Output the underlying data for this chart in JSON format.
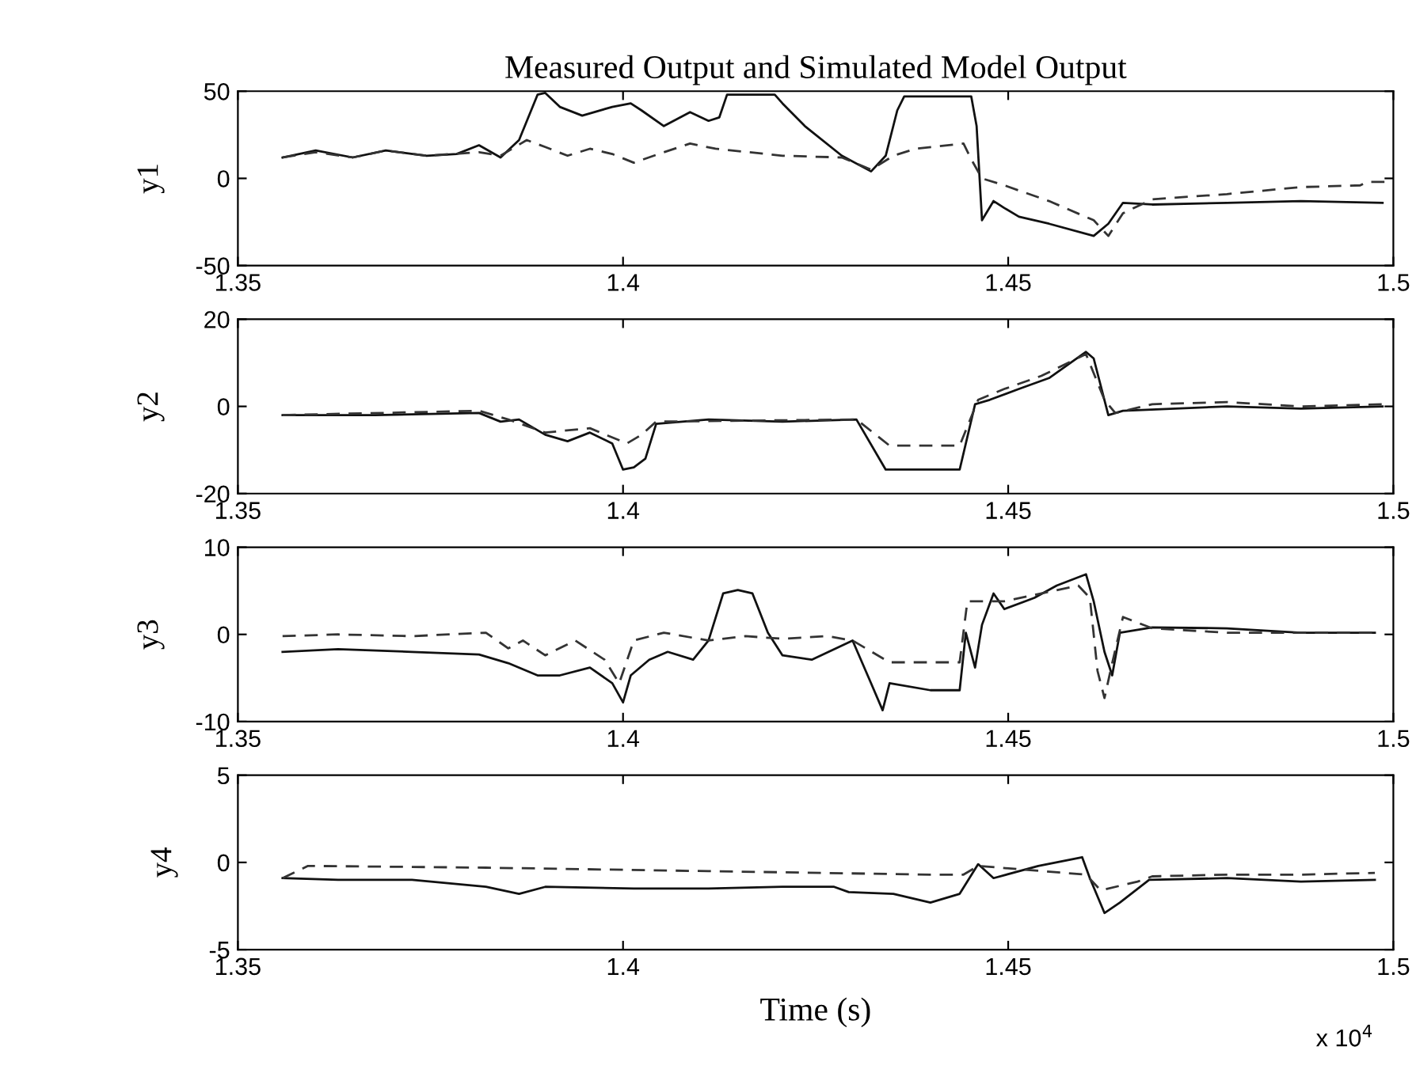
{
  "chart_data": [
    {
      "type": "line",
      "title": "Measured Output and Simulated Model Output",
      "ylabel": "y1",
      "xlim": [
        1.35,
        1.5
      ],
      "ylim": [
        -50,
        50
      ],
      "yticks": [
        -50,
        0,
        50
      ],
      "xticks": [
        1.35,
        1.4,
        1.45,
        1.5
      ],
      "grid": false,
      "series": [
        {
          "color": "#111111",
          "line_style": "solid",
          "x": [
            1.3558,
            1.3601,
            1.3649,
            1.3692,
            1.3745,
            1.3784,
            1.3813,
            1.3841,
            1.3865,
            1.3889,
            1.3899,
            1.3918,
            1.3947,
            1.3986,
            1.401,
            1.4024,
            1.4053,
            1.4087,
            1.4111,
            1.4125,
            1.4135,
            1.4197,
            1.4207,
            1.4236,
            1.4284,
            1.4322,
            1.4341,
            1.4356,
            1.4365,
            1.4452,
            1.4459,
            1.4466,
            1.4481,
            1.4495,
            1.4514,
            1.4553,
            1.4611,
            1.463,
            1.4649,
            1.4687,
            1.4784,
            1.488,
            1.4986
          ],
          "values": [
            12,
            16,
            12,
            16,
            13,
            14,
            19,
            12,
            22,
            48,
            49,
            41,
            36,
            41,
            43,
            39,
            30,
            38,
            33,
            35,
            48,
            48,
            43,
            30,
            13,
            4,
            13,
            39,
            47,
            47,
            30,
            -24,
            -13,
            -17,
            -22,
            -26,
            -33,
            -26,
            -14,
            -15,
            -14,
            -13,
            -14
          ]
        },
        {
          "color": "#333333",
          "line_style": "dashed",
          "x": [
            1.3558,
            1.3601,
            1.3649,
            1.3692,
            1.3745,
            1.3813,
            1.3841,
            1.3875,
            1.3899,
            1.3928,
            1.3957,
            1.3986,
            1.4014,
            1.4053,
            1.4087,
            1.412,
            1.4207,
            1.4284,
            1.4322,
            1.4351,
            1.438,
            1.4442,
            1.4452,
            1.4466,
            1.4495,
            1.4553,
            1.4611,
            1.463,
            1.4649,
            1.4687,
            1.4784,
            1.488,
            1.4957,
            1.4966,
            1.4995
          ],
          "values": [
            12,
            15,
            12,
            16,
            13,
            15,
            13,
            22,
            18,
            13,
            17,
            14,
            9,
            15,
            20,
            17,
            13,
            12,
            5,
            13,
            17,
            20,
            11,
            0,
            -4,
            -13,
            -24,
            -33,
            -20,
            -12,
            -9,
            -5,
            -4,
            -2,
            -2
          ]
        }
      ]
    },
    {
      "type": "line",
      "ylabel": "y2",
      "xlim": [
        1.35,
        1.5
      ],
      "ylim": [
        -20,
        20
      ],
      "yticks": [
        -20,
        0,
        20
      ],
      "xticks": [
        1.35,
        1.4,
        1.45,
        1.5
      ],
      "grid": false,
      "series": [
        {
          "color": "#111111",
          "line_style": "solid",
          "x": [
            1.3558,
            1.3678,
            1.3813,
            1.3841,
            1.3865,
            1.3899,
            1.3928,
            1.3957,
            1.3986,
            1.4,
            1.4014,
            1.4029,
            1.4043,
            1.4111,
            1.4207,
            1.4303,
            1.4341,
            1.4437,
            1.4457,
            1.4476,
            1.4514,
            1.4553,
            1.4601,
            1.4611,
            1.463,
            1.4649,
            1.4784,
            1.488,
            1.4986
          ],
          "values": [
            -2,
            -2,
            -1.5,
            -3.5,
            -3,
            -6.5,
            -8,
            -6,
            -8.5,
            -14.5,
            -14,
            -12,
            -4,
            -3,
            -3.5,
            -3,
            -14.5,
            -14.5,
            0.5,
            1.5,
            4,
            6.5,
            12.5,
            11,
            -2,
            -1,
            0,
            -0.5,
            0
          ]
        },
        {
          "color": "#333333",
          "line_style": "dashed",
          "x": [
            1.3558,
            1.3813,
            1.3851,
            1.3899,
            1.3957,
            1.4005,
            1.4024,
            1.4043,
            1.4303,
            1.4346,
            1.4437,
            1.4461,
            1.4495,
            1.4543,
            1.4601,
            1.4625,
            1.4639,
            1.4687,
            1.4784,
            1.488,
            1.4986
          ],
          "values": [
            -2,
            -1,
            -3,
            -6,
            -5,
            -8.5,
            -6.5,
            -3.5,
            -3,
            -9,
            -9,
            1.5,
            4,
            7,
            12,
            1.5,
            -1.5,
            0.5,
            1,
            0,
            0.5
          ]
        }
      ]
    },
    {
      "type": "line",
      "ylabel": "y3",
      "xlim": [
        1.35,
        1.5
      ],
      "ylim": [
        -10,
        10
      ],
      "yticks": [
        -10,
        0,
        10
      ],
      "xticks": [
        1.35,
        1.4,
        1.45,
        1.5
      ],
      "grid": false,
      "series": [
        {
          "color": "#111111",
          "line_style": "solid",
          "x": [
            1.3558,
            1.363,
            1.3726,
            1.3813,
            1.3851,
            1.3889,
            1.3918,
            1.3957,
            1.3986,
            1.4,
            1.401,
            1.4034,
            1.4058,
            1.4091,
            1.4111,
            1.413,
            1.4149,
            1.4168,
            1.4188,
            1.4207,
            1.4245,
            1.4298,
            1.4322,
            1.4337,
            1.4346,
            1.4399,
            1.4437,
            1.4445,
            1.4457,
            1.4466,
            1.4481,
            1.4495,
            1.4534,
            1.4563,
            1.4601,
            1.4611,
            1.4625,
            1.4635,
            1.4645,
            1.4687,
            1.4784,
            1.488,
            1.4976
          ],
          "values": [
            -2,
            -1.7,
            -2,
            -2.3,
            -3.3,
            -4.7,
            -4.7,
            -3.8,
            -5.6,
            -7.8,
            -4.7,
            -2.9,
            -2,
            -2.9,
            -0.7,
            4.7,
            5.1,
            4.7,
            0.2,
            -2.4,
            -2.9,
            -0.7,
            -5.6,
            -8.7,
            -5.6,
            -6.4,
            -6.4,
            0.2,
            -3.8,
            1.1,
            4.7,
            2.9,
            4.2,
            5.6,
            6.9,
            3.8,
            -2,
            -4.7,
            0.2,
            0.8,
            0.7,
            0.2,
            0.2
          ]
        },
        {
          "color": "#333333",
          "line_style": "dashed",
          "x": [
            1.3558,
            1.363,
            1.3726,
            1.3822,
            1.3851,
            1.387,
            1.3899,
            1.3938,
            1.3976,
            1.3995,
            1.4014,
            1.4053,
            1.4111,
            1.4159,
            1.4207,
            1.4265,
            1.4298,
            1.4346,
            1.4437,
            1.4447,
            1.4466,
            1.4495,
            1.4591,
            1.4606,
            1.4616,
            1.4625,
            1.4635,
            1.4649,
            1.4687,
            1.4784,
            1.488,
            1.4976
          ],
          "values": [
            -0.2,
            0,
            -0.2,
            0.2,
            -1.6,
            -0.7,
            -2.4,
            -0.7,
            -2.9,
            -5.6,
            -0.7,
            0.2,
            -0.7,
            -0.2,
            -0.5,
            -0.2,
            -0.7,
            -3.2,
            -3.2,
            3.8,
            3.8,
            3.8,
            5.6,
            4.2,
            -4.2,
            -7.3,
            -3.3,
            2,
            0.7,
            0.2,
            0.2,
            0.2
          ]
        }
      ]
    },
    {
      "type": "line",
      "ylabel": "y4",
      "xlabel": "Time (s)",
      "annotations": [
        "x 10$^{4}$"
      ],
      "xlim": [
        1.35,
        1.5
      ],
      "ylim": [
        -5,
        5
      ],
      "yticks": [
        -5,
        0,
        5
      ],
      "xticks": [
        1.35,
        1.4,
        1.45,
        1.5
      ],
      "grid": false,
      "series": [
        {
          "color": "#111111",
          "line_style": "solid",
          "x": [
            1.3558,
            1.363,
            1.3726,
            1.3822,
            1.3865,
            1.3899,
            1.4014,
            1.4111,
            1.4207,
            1.4274,
            1.4293,
            1.4351,
            1.4399,
            1.4437,
            1.4461,
            1.4481,
            1.4539,
            1.4596,
            1.4606,
            1.4625,
            1.4645,
            1.4683,
            1.4784,
            1.488,
            1.4976
          ],
          "values": [
            -0.9,
            -1,
            -1,
            -1.4,
            -1.8,
            -1.4,
            -1.5,
            -1.5,
            -1.4,
            -1.4,
            -1.7,
            -1.8,
            -2.3,
            -1.8,
            -0.1,
            -0.9,
            -0.2,
            0.3,
            -0.9,
            -2.9,
            -2.3,
            -1,
            -0.9,
            -1.1,
            -1
          ]
        },
        {
          "color": "#333333",
          "line_style": "dashed",
          "x": [
            1.3558,
            1.3591,
            1.3822,
            1.4111,
            1.4399,
            1.4442,
            1.4461,
            1.4601,
            1.462,
            1.4668,
            1.4687,
            1.4784,
            1.488,
            1.4976
          ],
          "values": [
            -0.9,
            -0.2,
            -0.3,
            -0.5,
            -0.7,
            -0.7,
            -0.2,
            -0.7,
            -1.6,
            -1.1,
            -0.8,
            -0.7,
            -0.7,
            -0.6
          ]
        }
      ]
    }
  ]
}
